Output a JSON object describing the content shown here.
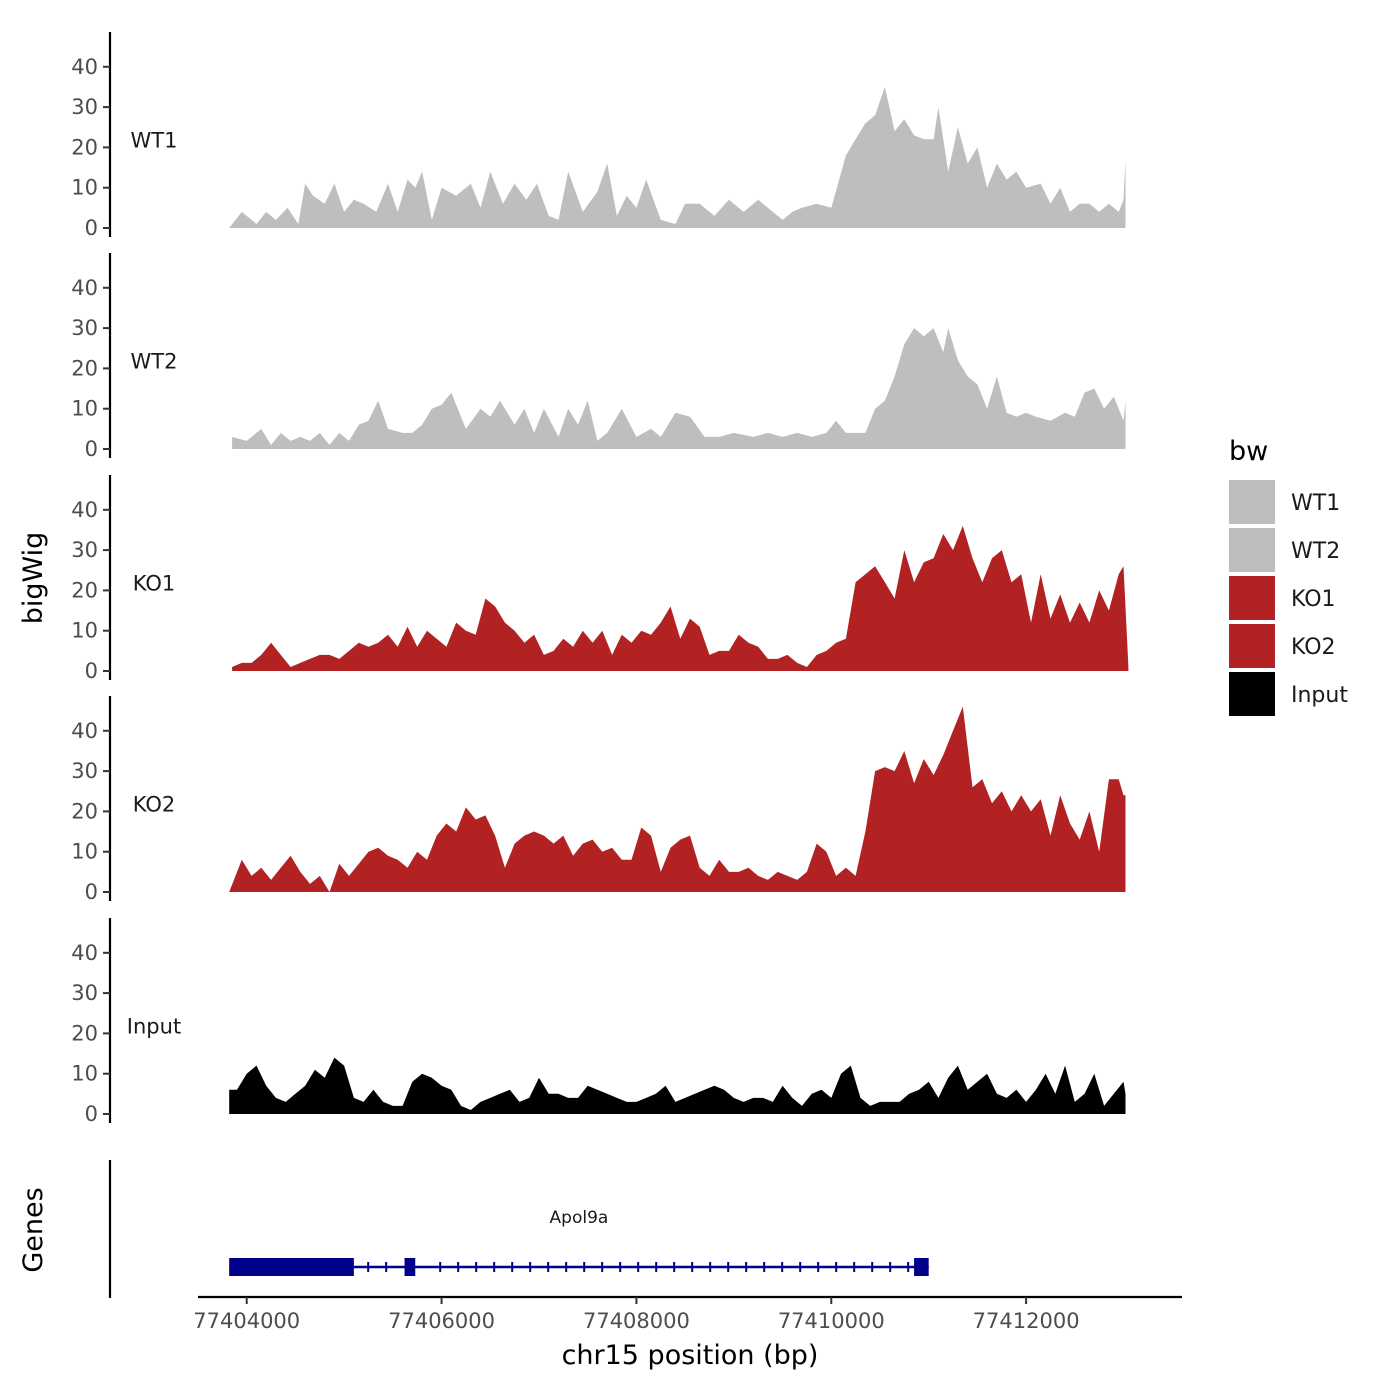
{
  "chart_data": {
    "type": "area",
    "title": "",
    "xlabel": "chr15 position (bp)",
    "ylabel": "bigWig",
    "genes_label": "Genes",
    "xlim": [
      77403500,
      77413600
    ],
    "x_ticks": [
      77404000,
      77406000,
      77408000,
      77410000,
      77412000
    ],
    "x_tick_labels": [
      "77404000",
      "77406000",
      "77408000",
      "77410000",
      "77412000"
    ],
    "ylim": [
      0,
      48
    ],
    "y_ticks": [
      0,
      10,
      20,
      30,
      40
    ],
    "y_tick_labels": [
      "0",
      "10",
      "20",
      "30",
      "40"
    ],
    "legend": {
      "title": "bw",
      "entries": [
        {
          "label": "WT1",
          "color": "#bebebe"
        },
        {
          "label": "WT2",
          "color": "#bebebe"
        },
        {
          "label": "KO1",
          "color": "#b22222"
        },
        {
          "label": "KO2",
          "color": "#b22222"
        },
        {
          "label": "Input",
          "color": "#000000"
        }
      ]
    },
    "series": [
      {
        "name": "WT1",
        "color": "#bebebe",
        "x": [
          77403820,
          77403950,
          77404100,
          77404200,
          77404300,
          77404420,
          77404530,
          77404600,
          77404680,
          77404800,
          77404900,
          77405000,
          77405100,
          77405200,
          77405330,
          77405450,
          77405550,
          77405650,
          77405730,
          77405800,
          77405900,
          77406000,
          77406150,
          77406300,
          77406400,
          77406500,
          77406630,
          77406750,
          77406870,
          77406980,
          77407100,
          77407200,
          77407300,
          77407450,
          77407600,
          77407700,
          77407800,
          77407900,
          77408000,
          77408100,
          77408250,
          77408400,
          77408500,
          77408650,
          77408800,
          77408950,
          77409100,
          77409250,
          77409400,
          77409500,
          77409600,
          77409700,
          77409850,
          77410000,
          77410150,
          77410250,
          77410350,
          77410450,
          77410550,
          77410650,
          77410750,
          77410850,
          77410950,
          77411050,
          77411100,
          77411200,
          77411300,
          77411400,
          77411500,
          77411600,
          77411700,
          77411800,
          77411900,
          77412000,
          77412150,
          77412250,
          77412350,
          77412450,
          77412550,
          77412650,
          77412750,
          77412850,
          77412950,
          77413000,
          77413020
        ],
        "values": [
          0,
          4,
          1,
          4,
          2,
          5,
          1,
          11,
          8,
          6,
          11,
          4,
          7,
          6,
          4,
          11,
          4,
          12,
          10,
          14,
          2,
          10,
          8,
          11,
          5,
          14,
          6,
          11,
          7,
          11,
          3,
          2,
          14,
          4,
          9,
          16,
          3,
          8,
          5,
          12,
          2,
          1,
          6,
          6,
          3,
          7,
          4,
          7,
          4,
          2,
          4,
          5,
          6,
          5,
          18,
          22,
          26,
          28,
          35,
          24,
          27,
          23,
          22,
          22,
          30,
          14,
          25,
          16,
          20,
          10,
          16,
          12,
          14,
          10,
          11,
          6,
          10,
          4,
          6,
          6,
          4,
          6,
          4,
          7,
          17
        ]
      },
      {
        "name": "WT2",
        "color": "#bebebe",
        "x": [
          77403850,
          77404000,
          77404150,
          77404250,
          77404350,
          77404450,
          77404550,
          77404650,
          77404750,
          77404850,
          77404950,
          77405050,
          77405150,
          77405250,
          77405350,
          77405450,
          77405600,
          77405700,
          77405800,
          77405900,
          77406000,
          77406100,
          77406250,
          77406400,
          77406500,
          77406600,
          77406750,
          77406850,
          77406950,
          77407050,
          77407200,
          77407300,
          77407400,
          77407500,
          77407600,
          77407700,
          77407850,
          77408000,
          77408150,
          77408250,
          77408400,
          77408550,
          77408700,
          77408850,
          77409000,
          77409200,
          77409350,
          77409500,
          77409650,
          77409800,
          77409950,
          77410050,
          77410150,
          77410250,
          77410350,
          77410450,
          77410550,
          77410650,
          77410750,
          77410850,
          77410950,
          77411050,
          77411150,
          77411200,
          77411300,
          77411400,
          77411500,
          77411600,
          77411700,
          77411800,
          77411900,
          77412000,
          77412100,
          77412250,
          77412400,
          77412500,
          77412600,
          77412700,
          77412800,
          77412900,
          77413000,
          77413020
        ],
        "values": [
          3,
          2,
          5,
          1,
          4,
          2,
          3,
          2,
          4,
          1,
          4,
          2,
          6,
          7,
          12,
          5,
          4,
          4,
          6,
          10,
          11,
          14,
          5,
          10,
          8,
          12,
          6,
          10,
          4,
          10,
          3,
          10,
          6,
          12,
          2,
          4,
          10,
          3,
          5,
          3,
          9,
          8,
          3,
          3,
          4,
          3,
          4,
          3,
          4,
          3,
          4,
          7,
          4,
          4,
          4,
          10,
          12,
          18,
          26,
          30,
          28,
          30,
          24,
          30,
          22,
          18,
          16,
          10,
          18,
          9,
          8,
          9,
          8,
          7,
          9,
          8,
          14,
          15,
          10,
          13,
          7,
          12
        ]
      },
      {
        "name": "KO1",
        "color": "#b22222",
        "x": [
          77403850,
          77403950,
          77404050,
          77404150,
          77404250,
          77404350,
          77404450,
          77404550,
          77404650,
          77404750,
          77404850,
          77404950,
          77405050,
          77405150,
          77405250,
          77405350,
          77405450,
          77405550,
          77405650,
          77405750,
          77405850,
          77405950,
          77406050,
          77406150,
          77406250,
          77406350,
          77406450,
          77406550,
          77406650,
          77406750,
          77406850,
          77406950,
          77407050,
          77407150,
          77407250,
          77407350,
          77407450,
          77407550,
          77407650,
          77407750,
          77407850,
          77407950,
          77408050,
          77408150,
          77408250,
          77408350,
          77408450,
          77408550,
          77408650,
          77408750,
          77408850,
          77408950,
          77409050,
          77409150,
          77409250,
          77409350,
          77409450,
          77409550,
          77409650,
          77409750,
          77409850,
          77409950,
          77410050,
          77410150,
          77410250,
          77410350,
          77410450,
          77410550,
          77410650,
          77410750,
          77410850,
          77410950,
          77411050,
          77411150,
          77411250,
          77411350,
          77411450,
          77411550,
          77411650,
          77411750,
          77411850,
          77411950,
          77412050,
          77412150,
          77412250,
          77412350,
          77412450,
          77412550,
          77412650,
          77412750,
          77412850,
          77412950,
          77413000,
          77413050
        ],
        "values": [
          1,
          2,
          2,
          4,
          7,
          4,
          1,
          2,
          3,
          4,
          4,
          3,
          5,
          7,
          6,
          7,
          9,
          6,
          11,
          6,
          10,
          8,
          6,
          12,
          10,
          9,
          18,
          16,
          12,
          10,
          7,
          9,
          4,
          5,
          8,
          6,
          10,
          7,
          10,
          4,
          9,
          7,
          10,
          9,
          12,
          16,
          8,
          13,
          11,
          4,
          5,
          5,
          9,
          7,
          6,
          3,
          3,
          4,
          2,
          1,
          4,
          5,
          7,
          8,
          22,
          24,
          26,
          22,
          18,
          30,
          22,
          27,
          28,
          34,
          30,
          36,
          28,
          22,
          28,
          30,
          22,
          24,
          12,
          24,
          13,
          19,
          12,
          17,
          12,
          20,
          15,
          24,
          26,
          1
        ]
      },
      {
        "name": "KO2",
        "color": "#b22222",
        "x": [
          77403820,
          77403950,
          77404050,
          77404150,
          77404250,
          77404350,
          77404450,
          77404550,
          77404650,
          77404750,
          77404850,
          77404950,
          77405050,
          77405150,
          77405250,
          77405350,
          77405450,
          77405550,
          77405650,
          77405750,
          77405850,
          77405950,
          77406050,
          77406150,
          77406250,
          77406350,
          77406450,
          77406550,
          77406650,
          77406750,
          77406850,
          77406950,
          77407050,
          77407150,
          77407250,
          77407350,
          77407450,
          77407550,
          77407650,
          77407750,
          77407850,
          77407950,
          77408050,
          77408150,
          77408250,
          77408350,
          77408450,
          77408550,
          77408650,
          77408750,
          77408850,
          77408950,
          77409050,
          77409150,
          77409250,
          77409350,
          77409450,
          77409550,
          77409650,
          77409750,
          77409850,
          77409950,
          77410050,
          77410150,
          77410250,
          77410350,
          77410450,
          77410550,
          77410650,
          77410750,
          77410850,
          77410950,
          77411050,
          77411150,
          77411250,
          77411350,
          77411450,
          77411550,
          77411650,
          77411750,
          77411850,
          77411950,
          77412050,
          77412150,
          77412250,
          77412350,
          77412450,
          77412550,
          77412650,
          77412750,
          77412850,
          77412950,
          77413000,
          77413020
        ],
        "values": [
          0,
          8,
          4,
          6,
          3,
          6,
          9,
          5,
          2,
          4,
          0,
          7,
          4,
          7,
          10,
          11,
          9,
          8,
          6,
          10,
          8,
          14,
          17,
          15,
          21,
          18,
          19,
          14,
          6,
          12,
          14,
          15,
          14,
          12,
          14,
          9,
          12,
          13,
          10,
          11,
          8,
          8,
          16,
          14,
          5,
          11,
          13,
          14,
          6,
          4,
          8,
          5,
          5,
          6,
          4,
          3,
          5,
          4,
          3,
          5,
          12,
          10,
          4,
          6,
          4,
          15,
          30,
          31,
          30,
          35,
          27,
          33,
          29,
          34,
          40,
          46,
          26,
          28,
          22,
          25,
          20,
          24,
          20,
          23,
          14,
          24,
          17,
          13,
          20,
          10,
          28,
          28,
          24,
          24
        ]
      },
      {
        "name": "Input",
        "color": "#000000",
        "x": [
          77403820,
          77403900,
          77404000,
          77404100,
          77404200,
          77404300,
          77404400,
          77404500,
          77404600,
          77404700,
          77404800,
          77404900,
          77405000,
          77405100,
          77405200,
          77405300,
          77405400,
          77405500,
          77405600,
          77405700,
          77405800,
          77405900,
          77406000,
          77406100,
          77406200,
          77406300,
          77406400,
          77406500,
          77406600,
          77406700,
          77406800,
          77406900,
          77407000,
          77407100,
          77407200,
          77407300,
          77407400,
          77407500,
          77407600,
          77407700,
          77407800,
          77407900,
          77408000,
          77408100,
          77408200,
          77408300,
          77408400,
          77408500,
          77408600,
          77408700,
          77408800,
          77408900,
          77409000,
          77409100,
          77409200,
          77409300,
          77409400,
          77409500,
          77409600,
          77409700,
          77409800,
          77409900,
          77410000,
          77410100,
          77410200,
          77410300,
          77410400,
          77410500,
          77410600,
          77410700,
          77410800,
          77410900,
          77411000,
          77411100,
          77411200,
          77411300,
          77411400,
          77411500,
          77411600,
          77411700,
          77411800,
          77411900,
          77412000,
          77412100,
          77412200,
          77412300,
          77412400,
          77412500,
          77412600,
          77412700,
          77412800,
          77412900,
          77413000,
          77413020
        ],
        "values": [
          6,
          6,
          10,
          12,
          7,
          4,
          3,
          5,
          7,
          11,
          9,
          14,
          12,
          4,
          3,
          6,
          3,
          2,
          2,
          8,
          10,
          9,
          7,
          6,
          2,
          1,
          3,
          4,
          5,
          6,
          3,
          4,
          9,
          5,
          5,
          4,
          4,
          7,
          6,
          5,
          4,
          3,
          3,
          4,
          5,
          7,
          3,
          4,
          5,
          6,
          7,
          6,
          4,
          3,
          4,
          4,
          3,
          7,
          4,
          2,
          5,
          6,
          4,
          10,
          12,
          4,
          2,
          3,
          3,
          3,
          5,
          6,
          8,
          4,
          9,
          12,
          6,
          8,
          10,
          5,
          4,
          6,
          3,
          6,
          10,
          5,
          12,
          3,
          5,
          10,
          2,
          5,
          8,
          5
        ]
      }
    ],
    "genes": [
      {
        "name": "Apol9a",
        "strand": "-",
        "start": 77403820,
        "end": 77410900,
        "exons": [
          [
            77403820,
            77405100
          ],
          [
            77405620,
            77405730
          ],
          [
            77410850,
            77411000
          ]
        ]
      }
    ]
  }
}
